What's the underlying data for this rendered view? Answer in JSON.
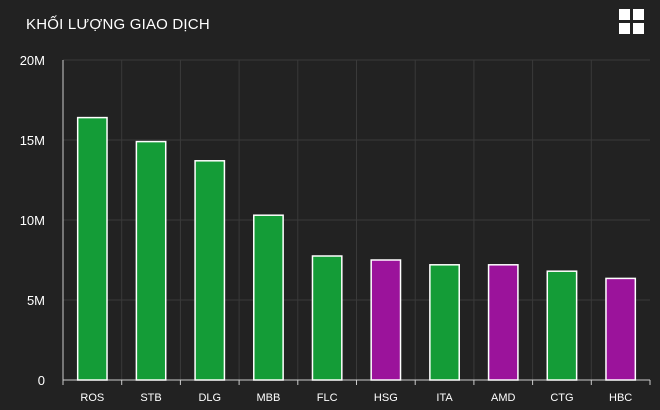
{
  "chart_data": {
    "type": "bar",
    "title": "KHỐI LƯỢNG GIAO DỊCH",
    "categories": [
      "ROS",
      "STB",
      "DLG",
      "MBB",
      "FLC",
      "HSG",
      "ITA",
      "AMD",
      "CTG",
      "HBC"
    ],
    "values": [
      16400000,
      14900000,
      13700000,
      10300000,
      7750000,
      7500000,
      7200000,
      7200000,
      6800000,
      6350000
    ],
    "bar_colors": [
      "#149c37",
      "#149c37",
      "#149c37",
      "#149c37",
      "#149c37",
      "#9b139b",
      "#149c37",
      "#9b139b",
      "#149c37",
      "#9b139b"
    ],
    "yticks": [
      0,
      5000000,
      10000000,
      15000000,
      20000000
    ],
    "ytick_labels": [
      "0",
      "5M",
      "10M",
      "15M",
      "20M"
    ],
    "ylim": [
      0,
      20000000
    ],
    "xlabel": "",
    "ylabel": "",
    "grid": true,
    "legend": "none"
  },
  "colors": {
    "background": "#222222",
    "grid": "#3a3a3a",
    "axis": "#cccccc",
    "bar_border": "#ffffff",
    "text": "#ffffff"
  },
  "toolbar": {
    "menu_icon": "grid-menu-icon"
  }
}
